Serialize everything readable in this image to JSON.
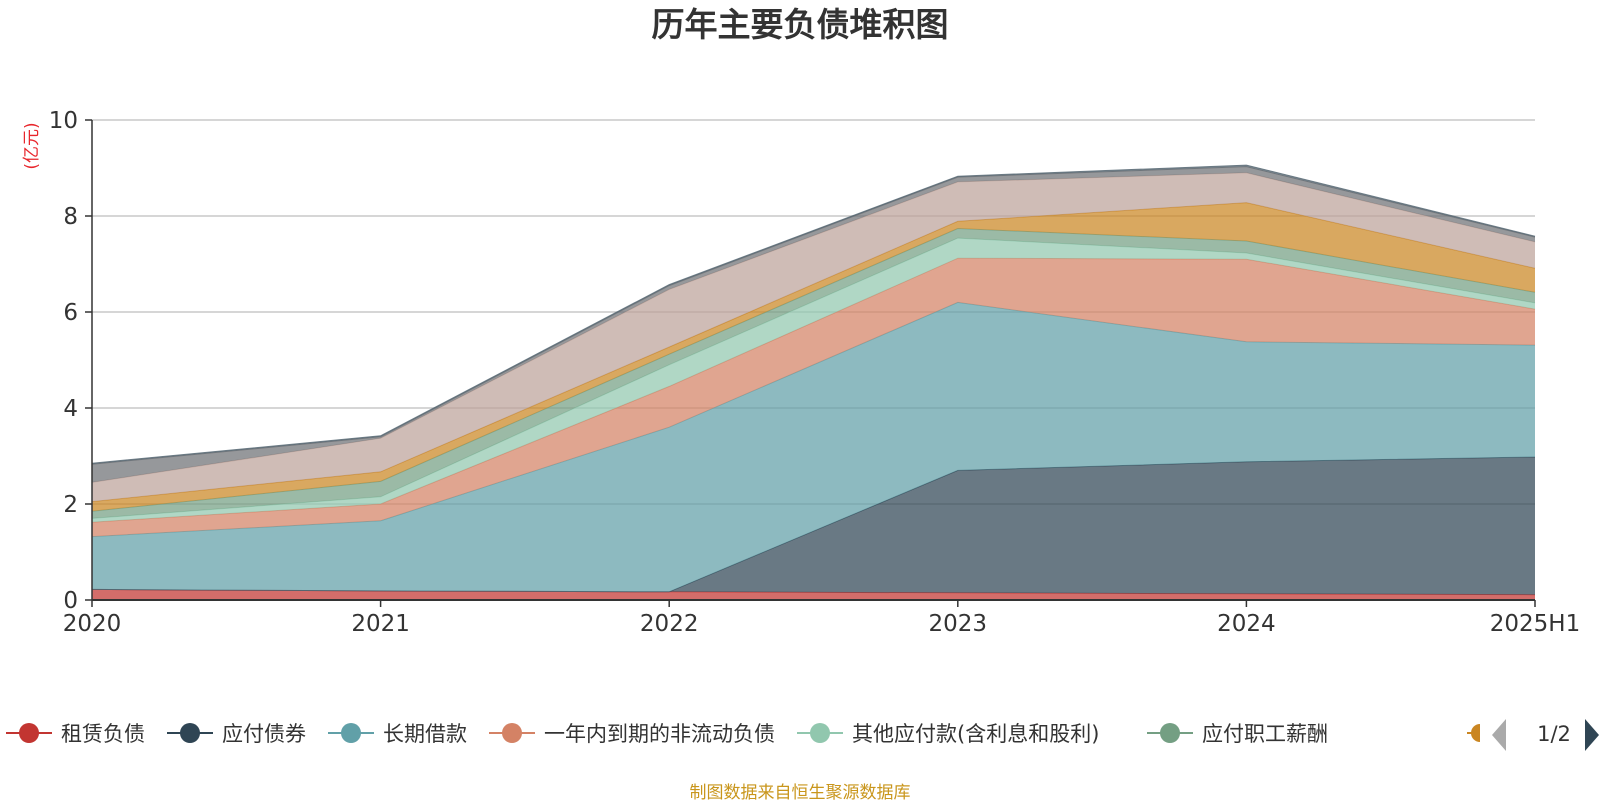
{
  "chart_data": {
    "type": "area",
    "stacked": true,
    "title": "历年主要负债堆积图",
    "unit_label": "(亿元)",
    "categories": [
      "2020",
      "2021",
      "2022",
      "2023",
      "2024",
      "2025H1"
    ],
    "ylim": [
      0,
      10
    ],
    "yticks": [
      0,
      2,
      4,
      6,
      8,
      10
    ],
    "grid": true,
    "series": [
      {
        "name": "租赁负债",
        "color": "#c23531",
        "values": [
          0.22,
          0.19,
          0.17,
          0.15,
          0.13,
          0.11
        ]
      },
      {
        "name": "应付债券",
        "color": "#2f4554",
        "values": [
          0,
          0,
          0,
          2.55,
          2.75,
          2.87
        ]
      },
      {
        "name": "长期借款",
        "color": "#61a0a8",
        "values": [
          1.1,
          1.46,
          3.43,
          3.5,
          2.5,
          2.33
        ]
      },
      {
        "name": "一年内到期的非流动负债",
        "color": "#d48265",
        "values": [
          0.3,
          0.35,
          0.85,
          0.92,
          1.72,
          0.75
        ]
      },
      {
        "name": "其他应付款(含利息和股利)",
        "color": "#91c7ae",
        "values": [
          0.08,
          0.15,
          0.45,
          0.42,
          0.13,
          0.13
        ]
      },
      {
        "name": "应付职工薪酬",
        "color": "#749f83",
        "values": [
          0.15,
          0.32,
          0.22,
          0.2,
          0.25,
          0.22
        ]
      },
      {
        "name": "",
        "color": "#ca8622",
        "values": [
          0.2,
          0.2,
          0.15,
          0.15,
          0.8,
          0.5
        ]
      },
      {
        "name": "",
        "color": "#bda29a",
        "values": [
          0.4,
          0.7,
          1.2,
          0.82,
          0.62,
          0.55
        ]
      },
      {
        "name": "",
        "color": "#6e7074",
        "values": [
          0.38,
          0.03,
          0.08,
          0.1,
          0.13,
          0.1
        ]
      },
      {
        "name": "",
        "color": "#546570",
        "values": [
          0.02,
          0.02,
          0.02,
          0.02,
          0.03,
          0.02
        ]
      }
    ],
    "legend": {
      "placement": "bottom",
      "visible_count": 6,
      "page": "1/2",
      "next_marker_color": "#ca8622"
    },
    "source_note": "制图数据来自恒生聚源数据库"
  }
}
